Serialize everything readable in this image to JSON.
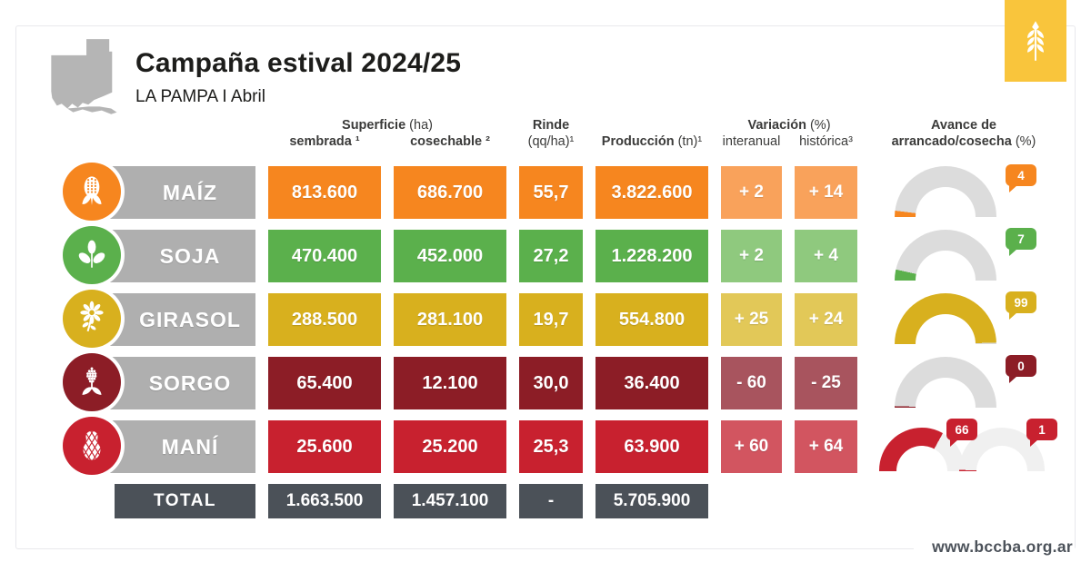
{
  "page": {
    "title": "Campaña estival 2024/25",
    "subtitle": "LA PAMPA I Abril",
    "website": "www.bccba.org.ar"
  },
  "columns": {
    "superficie": "Superficie",
    "superficie_unit": "(ha)",
    "sembrada": "sembrada ¹",
    "cosechable": "cosechable ²",
    "rinde": "Rinde",
    "rinde_unit": "(qq/ha)¹",
    "produccion": "Producción",
    "produccion_unit": "(tn)¹",
    "variacion": "Variación",
    "variacion_unit": "(%)",
    "interanual": "interanual",
    "historica": "histórica³",
    "avance_line1": "Avance de",
    "avance_line2": "arrancado/cosecha",
    "avance_unit": "(%)"
  },
  "rows": [
    {
      "crop": "MAÍZ",
      "icon": "corn-icon",
      "color": "#F6861F",
      "color_light": "#F9A25B",
      "sembrada": "813.600",
      "cosechable": "686.700",
      "rinde": "55,7",
      "produccion": "3.822.600",
      "interanual": "+ 2",
      "historica": "+ 14",
      "gauges": [
        {
          "value": 4,
          "label": "4"
        }
      ]
    },
    {
      "crop": "SOJA",
      "icon": "soybean-icon",
      "color": "#5BB04C",
      "color_light": "#8FC97E",
      "sembrada": "470.400",
      "cosechable": "452.000",
      "rinde": "27,2",
      "produccion": "1.228.200",
      "interanual": "+ 2",
      "historica": "+ 4",
      "gauges": [
        {
          "value": 7,
          "label": "7"
        }
      ]
    },
    {
      "crop": "GIRASOL",
      "icon": "sunflower-icon",
      "color": "#D8B01E",
      "color_light": "#E2C858",
      "sembrada": "288.500",
      "cosechable": "281.100",
      "rinde": "19,7",
      "produccion": "554.800",
      "interanual": "+ 25",
      "historica": "+ 24",
      "gauges": [
        {
          "value": 99,
          "label": "99"
        }
      ]
    },
    {
      "crop": "SORGO",
      "icon": "sorghum-icon",
      "color": "#8C1D26",
      "color_light": "#A8545E",
      "sembrada": "65.400",
      "cosechable": "12.100",
      "rinde": "30,0",
      "produccion": "36.400",
      "interanual": "- 60",
      "historica": "- 25",
      "gauges": [
        {
          "value": 1,
          "label": "0"
        }
      ]
    },
    {
      "crop": "MANÍ",
      "icon": "peanut-icon",
      "color": "#C8212F",
      "color_light": "#D25560",
      "sembrada": "25.600",
      "cosechable": "25.200",
      "rinde": "25,3",
      "produccion": "63.900",
      "interanual": "+ 60",
      "historica": "+ 64",
      "gauges": [
        {
          "value": 66,
          "label": "66",
          "track": "#F0F0F0"
        },
        {
          "value": 1,
          "label": "1",
          "track": "#F0F0F0"
        }
      ]
    }
  ],
  "total": {
    "label": "TOTAL",
    "sembrada": "1.663.500",
    "cosechable": "1.457.100",
    "rinde": "-",
    "produccion": "5.705.900",
    "color": "#4B5158"
  },
  "colors": {
    "card_border": "#E8E8EC",
    "label_bar": "#AFAFAF",
    "gauge_track": "#DCDCDC",
    "total_row": "#4B5158",
    "logo": "#F9C53C",
    "map": "#B5B5B5",
    "maiz": "#F6861F",
    "soja": "#5BB04C",
    "girasol": "#D8B01E",
    "sorgo": "#8C1D26",
    "mani": "#C8212F"
  },
  "chart_data": {
    "type": "table",
    "title": "Campaña estival 2024/25",
    "subtitle": "LA PAMPA I Abril",
    "columns": [
      "Superficie sembrada (ha)",
      "Superficie cosechable (ha)",
      "Rinde (qq/ha)",
      "Producción (tn)",
      "Variación interanual (%)",
      "Variación histórica (%)",
      "Avance de arrancado/cosecha (%)"
    ],
    "rows": [
      {
        "crop": "Maíz",
        "superficie_sembrada_ha": 813600,
        "superficie_cosechable_ha": 686700,
        "rinde_qq_ha": 55.7,
        "produccion_tn": 3822600,
        "variacion_interanual_pct": 2,
        "variacion_historica_pct": 14,
        "avance_cosecha_pct": [
          4
        ]
      },
      {
        "crop": "Soja",
        "superficie_sembrada_ha": 470400,
        "superficie_cosechable_ha": 452000,
        "rinde_qq_ha": 27.2,
        "produccion_tn": 1228200,
        "variacion_interanual_pct": 2,
        "variacion_historica_pct": 4,
        "avance_cosecha_pct": [
          7
        ]
      },
      {
        "crop": "Girasol",
        "superficie_sembrada_ha": 288500,
        "superficie_cosechable_ha": 281100,
        "rinde_qq_ha": 19.7,
        "produccion_tn": 554800,
        "variacion_interanual_pct": 25,
        "variacion_historica_pct": 24,
        "avance_cosecha_pct": [
          99
        ]
      },
      {
        "crop": "Sorgo",
        "superficie_sembrada_ha": 65400,
        "superficie_cosechable_ha": 12100,
        "rinde_qq_ha": 30.0,
        "produccion_tn": 36400,
        "variacion_interanual_pct": -60,
        "variacion_historica_pct": -25,
        "avance_cosecha_pct": [
          0
        ]
      },
      {
        "crop": "Maní",
        "superficie_sembrada_ha": 25600,
        "superficie_cosechable_ha": 25200,
        "rinde_qq_ha": 25.3,
        "produccion_tn": 63900,
        "variacion_interanual_pct": 60,
        "variacion_historica_pct": 64,
        "avance_cosecha_pct": [
          66,
          1
        ]
      }
    ],
    "total": {
      "superficie_sembrada_ha": 1663500,
      "superficie_cosechable_ha": 1457100,
      "produccion_tn": 5705900
    },
    "gauge_type": "semicircular donut 0-100%, filled clockwise from left"
  }
}
